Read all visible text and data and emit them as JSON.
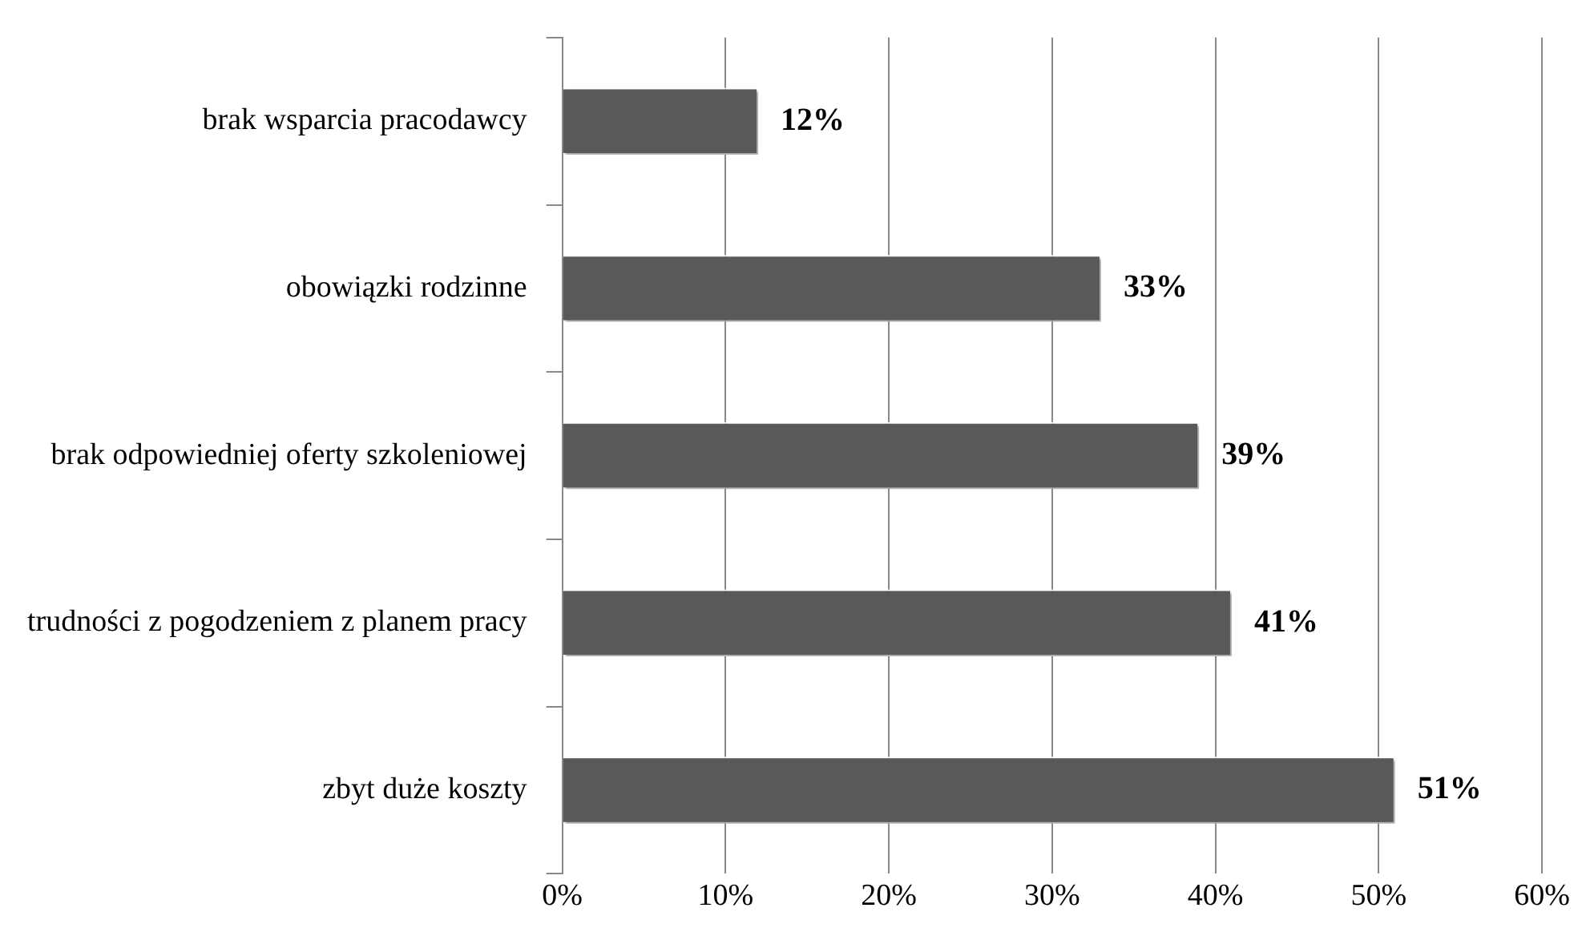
{
  "chart_data": {
    "type": "bar",
    "orientation": "horizontal",
    "categories": [
      "brak wsparcia pracodawcy",
      "obowiązki rodzinne",
      "brak odpowiedniej oferty szkoleniowej",
      "trudności z pogodzeniem z planem pracy",
      "zbyt duże koszty"
    ],
    "values": [
      12,
      33,
      39,
      41,
      51
    ],
    "color": "#595959",
    "value_labels": [
      "12%",
      "33%",
      "39%",
      "41%",
      "51%"
    ],
    "xlim": [
      0,
      60
    ],
    "xticks": [
      {
        "value": 0,
        "label": "0%"
      },
      {
        "value": 10,
        "label": "10%"
      },
      {
        "value": 20,
        "label": "20%"
      },
      {
        "value": 30,
        "label": "30%"
      },
      {
        "value": 40,
        "label": "40%"
      },
      {
        "value": 50,
        "label": "50%"
      },
      {
        "value": 60,
        "label": "60%"
      }
    ],
    "grid": "x",
    "legend": false
  }
}
